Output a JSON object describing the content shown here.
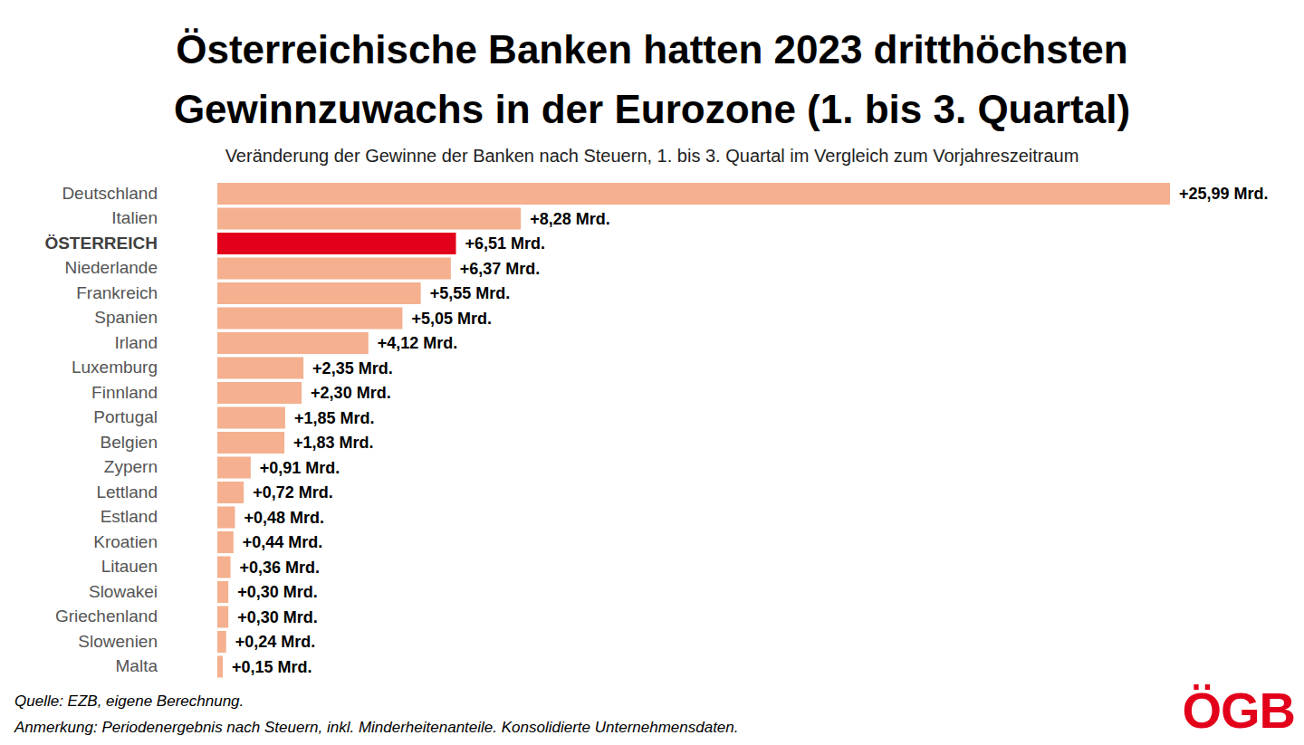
{
  "chart_data": {
    "type": "bar",
    "orientation": "horizontal",
    "title": "Österreichische Banken hatten 2023 dritthöchsten\nGewinnzuwachs in der Eurozone (1. bis 3. Quartal)",
    "subtitle": "Veränderung der Gewinne der Banken nach Steuern, 1. bis 3. Quartal im Vergleich zum Vorjahreszeitraum",
    "categories": [
      "Deutschland",
      "Italien",
      "ÖSTERREICH",
      "Niederlande",
      "Frankreich",
      "Spanien",
      "Irland",
      "Luxemburg",
      "Finnland",
      "Portugal",
      "Belgien",
      "Zypern",
      "Lettland",
      "Estland",
      "Kroatien",
      "Litauen",
      "Slowakei",
      "Griechenland",
      "Slowenien",
      "Malta"
    ],
    "values": [
      25.99,
      8.28,
      6.51,
      6.37,
      5.55,
      5.05,
      4.12,
      2.35,
      2.3,
      1.85,
      1.83,
      0.91,
      0.72,
      0.48,
      0.44,
      0.36,
      0.3,
      0.3,
      0.24,
      0.15
    ],
    "value_labels": [
      "+25,99 Mrd.",
      "+8,28 Mrd.",
      "+6,51 Mrd.",
      "+6,37 Mrd.",
      "+5,55 Mrd.",
      "+5,05 Mrd.",
      "+4,12 Mrd.",
      "+2,35 Mrd.",
      "+2,30 Mrd.",
      "+1,85 Mrd.",
      "+1,83 Mrd.",
      "+0,91 Mrd.",
      "+0,72 Mrd.",
      "+0,48 Mrd.",
      "+0,44 Mrd.",
      "+0,36 Mrd.",
      "+0,30 Mrd.",
      "+0,30 Mrd.",
      "+0,24 Mrd.",
      "+0,15 Mrd."
    ],
    "color": "#f4b08f",
    "colors": [
      "#f4b08f",
      "#f4b08f",
      "#e2001a",
      "#f4b08f",
      "#f4b08f",
      "#f4b08f",
      "#f4b08f",
      "#f4b08f",
      "#f4b08f",
      "#f4b08f",
      "#f4b08f",
      "#f4b08f",
      "#f4b08f",
      "#f4b08f",
      "#f4b08f",
      "#f4b08f",
      "#f4b08f",
      "#f4b08f",
      "#f4b08f",
      "#f4b08f"
    ],
    "data_labels": true,
    "tick_labels": "y",
    "grid": false,
    "source": "Quelle: EZB, eigene Berechnung.",
    "note": "Anmerkung: Periodenergebnis nach Steuern, inkl. Minderheitenanteile. Konsolidierte Unternehmensdaten.",
    "logo": "ÖGB"
  }
}
